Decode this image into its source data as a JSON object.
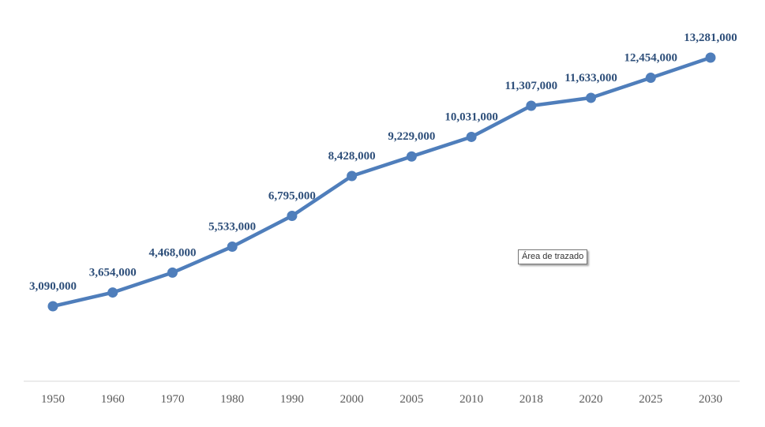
{
  "chart_data": {
    "type": "line",
    "categories": [
      "1950",
      "1960",
      "1970",
      "1980",
      "1990",
      "2000",
      "2005",
      "2010",
      "2018",
      "2020",
      "2025",
      "2030"
    ],
    "values": [
      3090000,
      3654000,
      4468000,
      5533000,
      6795000,
      8428000,
      9229000,
      10031000,
      11307000,
      11633000,
      12454000,
      13281000
    ],
    "data_labels": [
      "3,090,000",
      "3,654,000",
      "4,468,000",
      "5,533,000",
      "6,795,000",
      "8,428,000",
      "9,229,000",
      "10,031,000",
      "11,307,000",
      "11,633,000",
      "12,454,000",
      "13,281,000"
    ],
    "title": "",
    "xlabel": "",
    "ylabel": "",
    "grid": false,
    "legend": "none",
    "line_color": "#4f7ebb",
    "label_color": "#2e4f7a",
    "tick_color": "#595959",
    "axis_color": "#d9d9d9"
  },
  "tooltip": {
    "text": "Área de trazado"
  }
}
